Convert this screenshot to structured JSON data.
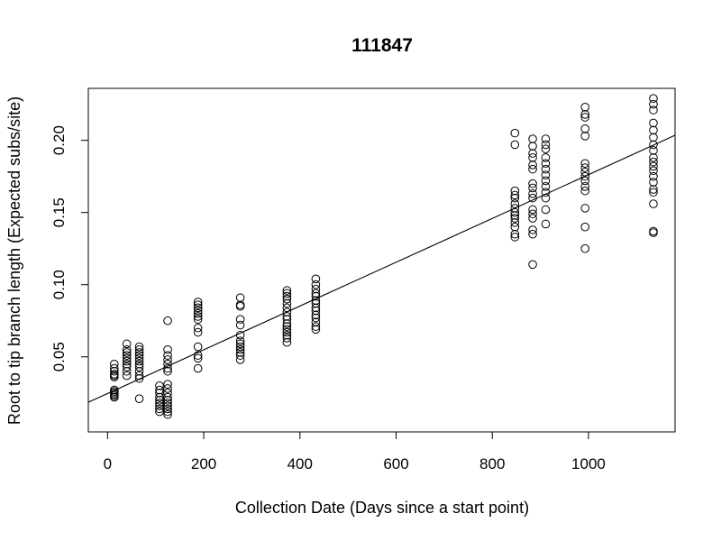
{
  "chart_data": {
    "type": "scatter",
    "title": "111847",
    "xlabel": "Collection Date (Days since a start point)",
    "ylabel": "Root to tip branch length (Expected subs/site)",
    "xlim": [
      -40,
      1180
    ],
    "ylim": [
      -0.002,
      0.236
    ],
    "xticks": [
      0,
      200,
      400,
      600,
      800,
      1000
    ],
    "yticks": [
      0.05,
      0.1,
      0.15,
      0.2
    ],
    "xtick_labels": [
      "0",
      "200",
      "400",
      "600",
      "800",
      "1000"
    ],
    "ytick_labels": [
      "0.05",
      "0.10",
      "0.15",
      "0.20"
    ],
    "grid": false,
    "marker": "open-circle",
    "regression_line": {
      "x": [
        -40,
        1180
      ],
      "y": [
        0.0185,
        0.2035
      ]
    },
    "points": [
      [
        14,
        0.022
      ],
      [
        14,
        0.023
      ],
      [
        14,
        0.024
      ],
      [
        14,
        0.025
      ],
      [
        14,
        0.026
      ],
      [
        14,
        0.027
      ],
      [
        14,
        0.036
      ],
      [
        14,
        0.037
      ],
      [
        14,
        0.038
      ],
      [
        14,
        0.04
      ],
      [
        14,
        0.042
      ],
      [
        14,
        0.045
      ],
      [
        40,
        0.037
      ],
      [
        40,
        0.04
      ],
      [
        40,
        0.043
      ],
      [
        40,
        0.045
      ],
      [
        40,
        0.047
      ],
      [
        40,
        0.049
      ],
      [
        40,
        0.051
      ],
      [
        40,
        0.053
      ],
      [
        40,
        0.055
      ],
      [
        40,
        0.059
      ],
      [
        66,
        0.021
      ],
      [
        66,
        0.035
      ],
      [
        66,
        0.037
      ],
      [
        66,
        0.04
      ],
      [
        66,
        0.043
      ],
      [
        66,
        0.045
      ],
      [
        66,
        0.047
      ],
      [
        66,
        0.049
      ],
      [
        66,
        0.051
      ],
      [
        66,
        0.053
      ],
      [
        66,
        0.055
      ],
      [
        66,
        0.057
      ],
      [
        108,
        0.012
      ],
      [
        108,
        0.014
      ],
      [
        108,
        0.016
      ],
      [
        108,
        0.018
      ],
      [
        108,
        0.02
      ],
      [
        108,
        0.022
      ],
      [
        108,
        0.025
      ],
      [
        108,
        0.027
      ],
      [
        108,
        0.03
      ],
      [
        125,
        0.01
      ],
      [
        125,
        0.012
      ],
      [
        125,
        0.014
      ],
      [
        125,
        0.016
      ],
      [
        125,
        0.018
      ],
      [
        125,
        0.02
      ],
      [
        125,
        0.022
      ],
      [
        125,
        0.025
      ],
      [
        125,
        0.028
      ],
      [
        125,
        0.031
      ],
      [
        125,
        0.04
      ],
      [
        125,
        0.042
      ],
      [
        125,
        0.045
      ],
      [
        125,
        0.048
      ],
      [
        125,
        0.051
      ],
      [
        125,
        0.055
      ],
      [
        125,
        0.075
      ],
      [
        188,
        0.042
      ],
      [
        188,
        0.049
      ],
      [
        188,
        0.051
      ],
      [
        188,
        0.057
      ],
      [
        188,
        0.067
      ],
      [
        188,
        0.07
      ],
      [
        188,
        0.076
      ],
      [
        188,
        0.078
      ],
      [
        188,
        0.08
      ],
      [
        188,
        0.082
      ],
      [
        188,
        0.084
      ],
      [
        188,
        0.086
      ],
      [
        188,
        0.088
      ],
      [
        276,
        0.048
      ],
      [
        276,
        0.051
      ],
      [
        276,
        0.053
      ],
      [
        276,
        0.055
      ],
      [
        276,
        0.057
      ],
      [
        276,
        0.059
      ],
      [
        276,
        0.061
      ],
      [
        276,
        0.065
      ],
      [
        276,
        0.072
      ],
      [
        276,
        0.076
      ],
      [
        276,
        0.085
      ],
      [
        276,
        0.086
      ],
      [
        276,
        0.091
      ],
      [
        373,
        0.06
      ],
      [
        373,
        0.063
      ],
      [
        373,
        0.065
      ],
      [
        373,
        0.067
      ],
      [
        373,
        0.069
      ],
      [
        373,
        0.071
      ],
      [
        373,
        0.073
      ],
      [
        373,
        0.076
      ],
      [
        373,
        0.078
      ],
      [
        373,
        0.081
      ],
      [
        373,
        0.084
      ],
      [
        373,
        0.087
      ],
      [
        373,
        0.09
      ],
      [
        373,
        0.092
      ],
      [
        373,
        0.094
      ],
      [
        373,
        0.096
      ],
      [
        433,
        0.069
      ],
      [
        433,
        0.071
      ],
      [
        433,
        0.074
      ],
      [
        433,
        0.077
      ],
      [
        433,
        0.079
      ],
      [
        433,
        0.082
      ],
      [
        433,
        0.084
      ],
      [
        433,
        0.087
      ],
      [
        433,
        0.089
      ],
      [
        433,
        0.092
      ],
      [
        433,
        0.094
      ],
      [
        433,
        0.097
      ],
      [
        433,
        0.1
      ],
      [
        433,
        0.104
      ],
      [
        847,
        0.133
      ],
      [
        847,
        0.135
      ],
      [
        847,
        0.14
      ],
      [
        847,
        0.143
      ],
      [
        847,
        0.146
      ],
      [
        847,
        0.148
      ],
      [
        847,
        0.15
      ],
      [
        847,
        0.153
      ],
      [
        847,
        0.156
      ],
      [
        847,
        0.16
      ],
      [
        847,
        0.162
      ],
      [
        847,
        0.165
      ],
      [
        847,
        0.197
      ],
      [
        847,
        0.205
      ],
      [
        884,
        0.114
      ],
      [
        884,
        0.135
      ],
      [
        884,
        0.138
      ],
      [
        884,
        0.146
      ],
      [
        884,
        0.149
      ],
      [
        884,
        0.152
      ],
      [
        884,
        0.16
      ],
      [
        884,
        0.163
      ],
      [
        884,
        0.167
      ],
      [
        884,
        0.17
      ],
      [
        884,
        0.18
      ],
      [
        884,
        0.183
      ],
      [
        884,
        0.188
      ],
      [
        884,
        0.191
      ],
      [
        884,
        0.196
      ],
      [
        884,
        0.201
      ],
      [
        911,
        0.142
      ],
      [
        911,
        0.152
      ],
      [
        911,
        0.16
      ],
      [
        911,
        0.164
      ],
      [
        911,
        0.168
      ],
      [
        911,
        0.172
      ],
      [
        911,
        0.176
      ],
      [
        911,
        0.18
      ],
      [
        911,
        0.184
      ],
      [
        911,
        0.188
      ],
      [
        911,
        0.194
      ],
      [
        911,
        0.197
      ],
      [
        911,
        0.201
      ],
      [
        993,
        0.125
      ],
      [
        993,
        0.14
      ],
      [
        993,
        0.153
      ],
      [
        993,
        0.165
      ],
      [
        993,
        0.168
      ],
      [
        993,
        0.172
      ],
      [
        993,
        0.175
      ],
      [
        993,
        0.178
      ],
      [
        993,
        0.181
      ],
      [
        993,
        0.184
      ],
      [
        993,
        0.203
      ],
      [
        993,
        0.208
      ],
      [
        993,
        0.216
      ],
      [
        993,
        0.218
      ],
      [
        993,
        0.223
      ],
      [
        1135,
        0.136
      ],
      [
        1135,
        0.137
      ],
      [
        1135,
        0.156
      ],
      [
        1135,
        0.164
      ],
      [
        1135,
        0.166
      ],
      [
        1135,
        0.171
      ],
      [
        1135,
        0.175
      ],
      [
        1135,
        0.179
      ],
      [
        1135,
        0.182
      ],
      [
        1135,
        0.185
      ],
      [
        1135,
        0.188
      ],
      [
        1135,
        0.193
      ],
      [
        1135,
        0.197
      ],
      [
        1135,
        0.202
      ],
      [
        1135,
        0.207
      ],
      [
        1135,
        0.212
      ],
      [
        1135,
        0.221
      ],
      [
        1135,
        0.225
      ],
      [
        1135,
        0.229
      ]
    ]
  }
}
